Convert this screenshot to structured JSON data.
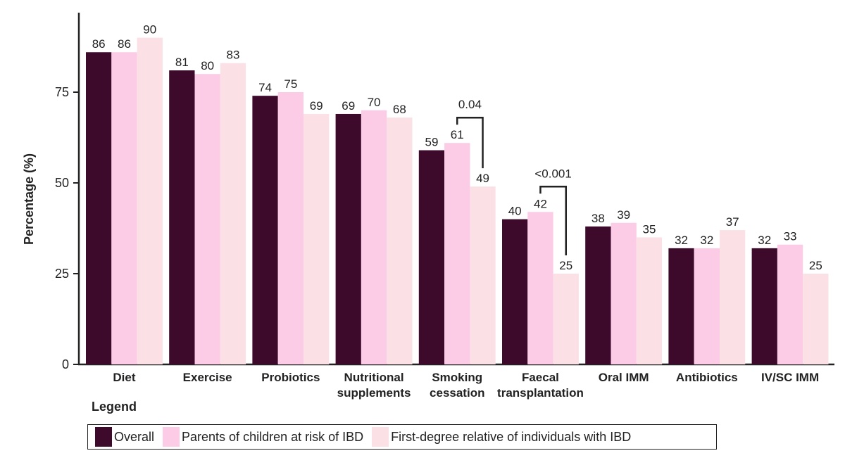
{
  "chart_data": {
    "type": "bar",
    "ylabel": "Percentage (%)",
    "xlabel": "",
    "ylim": [
      0,
      95
    ],
    "yticks": [
      0,
      25,
      50,
      75
    ],
    "categories": [
      "Diet",
      "Exercise",
      "Probiotics",
      "Nutritional supplements",
      "Smoking cessation",
      "Faecal transplantation",
      "Oral IMM",
      "Antibiotics",
      "IV/SC IMM"
    ],
    "category_lines": [
      [
        "Diet"
      ],
      [
        "Exercise"
      ],
      [
        "Probiotics"
      ],
      [
        "Nutritional",
        "supplements"
      ],
      [
        "Smoking",
        "cessation"
      ],
      [
        "Faecal",
        "transplantation"
      ],
      [
        "Oral IMM"
      ],
      [
        "Antibiotics"
      ],
      [
        "IV/SC IMM"
      ]
    ],
    "series": [
      {
        "name": "Overall",
        "color": "#3d0a2c",
        "values": [
          86,
          81,
          74,
          69,
          59,
          40,
          38,
          32,
          32
        ]
      },
      {
        "name": "Parents of children at risk of IBD",
        "color": "#fccbe6",
        "values": [
          86,
          80,
          75,
          70,
          61,
          42,
          39,
          32,
          33
        ]
      },
      {
        "name": "First-degree relative of individuals with IBD",
        "color": "#fbe1e6",
        "values": [
          90,
          83,
          69,
          68,
          49,
          25,
          35,
          37,
          25
        ]
      }
    ],
    "annotations": [
      {
        "category": "Smoking cessation",
        "from_series": 1,
        "to_series": 2,
        "text": "0.04"
      },
      {
        "category": "Faecal transplantation",
        "from_series": 1,
        "to_series": 2,
        "text": "<0.001"
      }
    ],
    "legend_title": "Legend",
    "legend_position": "bottom-left",
    "grid": false
  }
}
